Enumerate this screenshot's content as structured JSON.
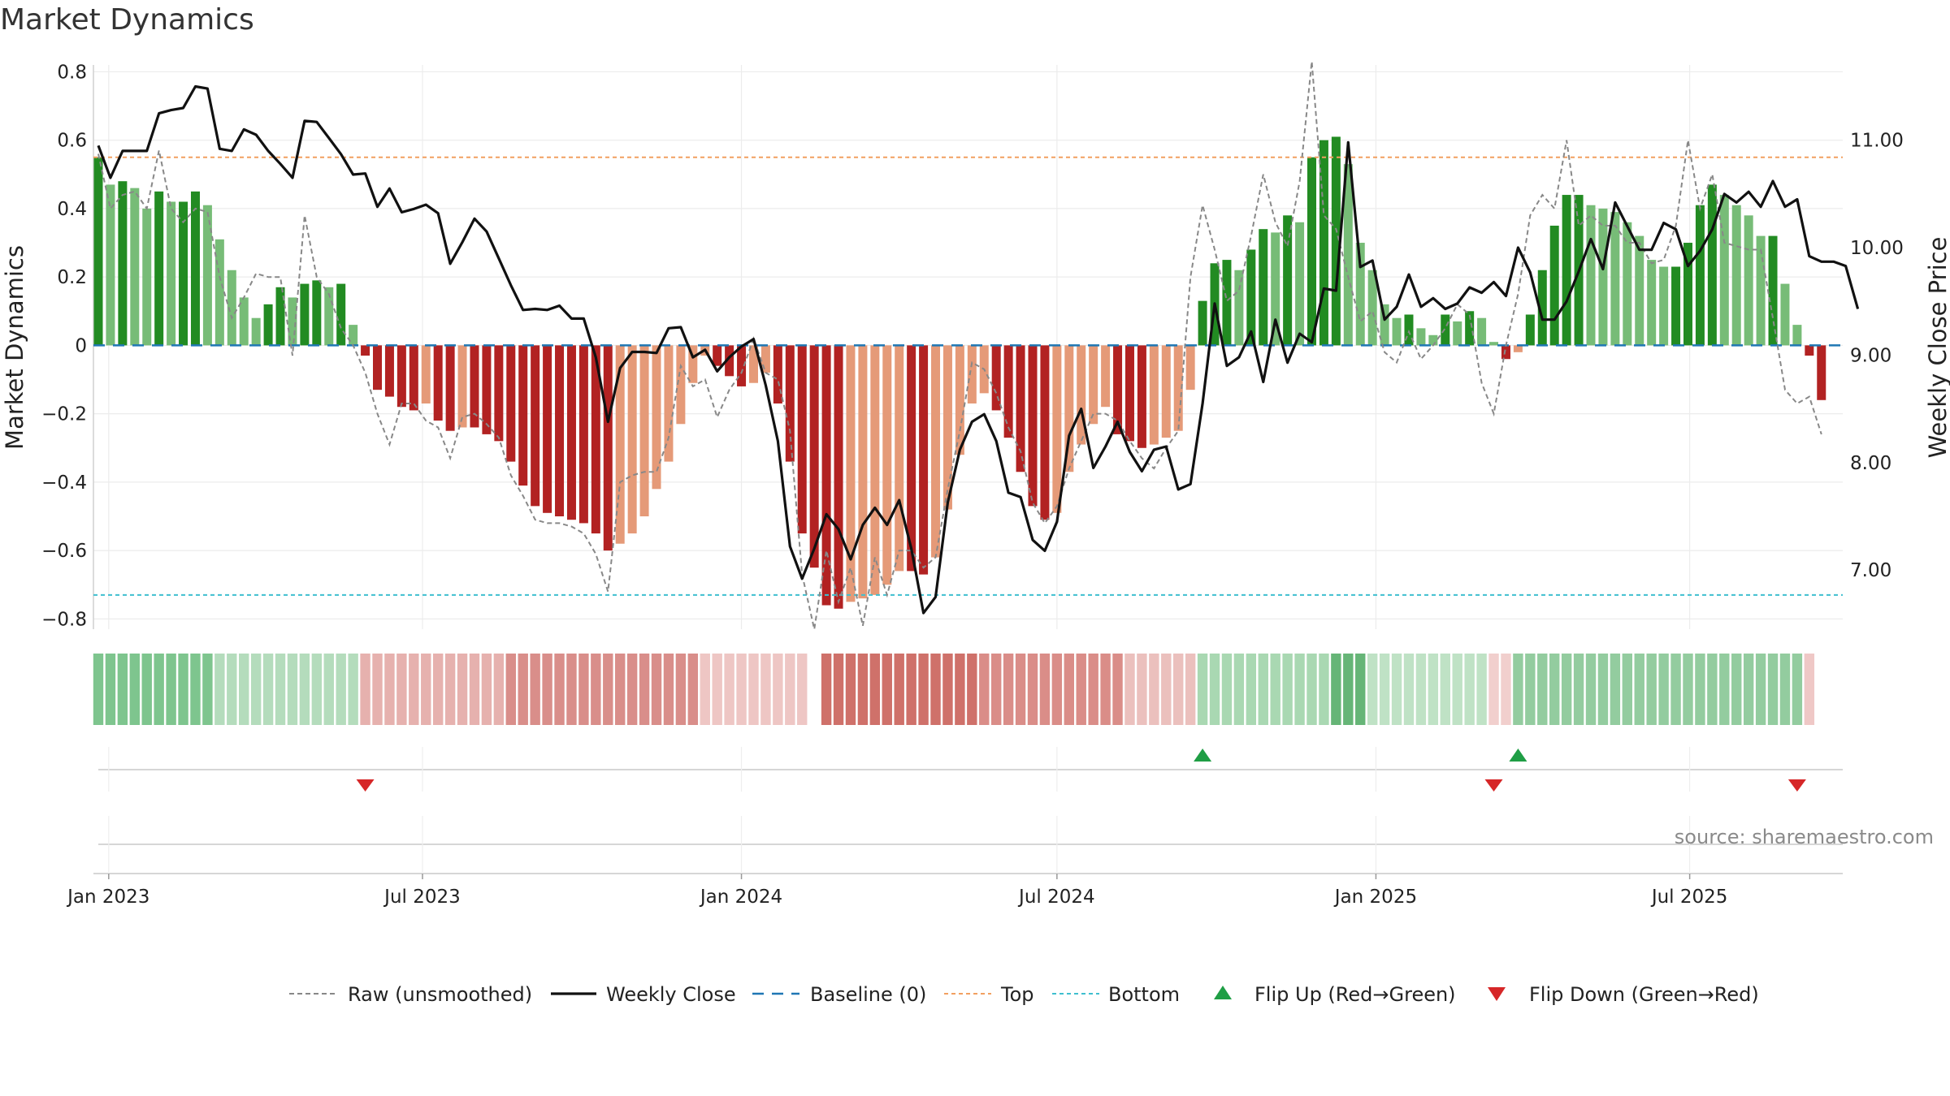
{
  "title": "Market Dynamics",
  "source": "source: sharemaestro.com",
  "colors": {
    "green_dark": "#228b22",
    "green_light": "#77bc77",
    "red_dark": "#b22222",
    "red_light": "#e59a78",
    "top": "#f2a060",
    "bottom": "#3fbfcf",
    "baseline": "#1f77b4",
    "raw": "#888888",
    "close": "#111111",
    "flip_up": "#1f9e45",
    "flip_down": "#d62728"
  },
  "chart_data": {
    "type": "bar",
    "x_start": "2022-12-26",
    "x_ticks": [
      {
        "date": "2023-01-01",
        "label": "Jan 2023"
      },
      {
        "date": "2023-07-01",
        "label": "Jul 2023"
      },
      {
        "date": "2024-01-01",
        "label": "Jan 2024"
      },
      {
        "date": "2024-07-01",
        "label": "Jul 2024"
      },
      {
        "date": "2025-01-01",
        "label": "Jan 2025"
      },
      {
        "date": "2025-07-01",
        "label": "Jul 2025"
      }
    ],
    "ylabel_left": "Market Dynamics",
    "ylabel_right": "Weekly Close Price",
    "ylim_left": [
      -0.83,
      0.82
    ],
    "ylim_right": [
      6.45,
      11.7
    ],
    "y_ticks_left": [
      {
        "v": 0.8,
        "label": "0.8"
      },
      {
        "v": 0.6,
        "label": "0.6"
      },
      {
        "v": 0.4,
        "label": "0.4"
      },
      {
        "v": 0.2,
        "label": "0.2"
      },
      {
        "v": 0,
        "label": "0"
      },
      {
        "v": -0.2,
        "label": "−0.2"
      },
      {
        "v": -0.4,
        "label": "−0.4"
      },
      {
        "v": -0.6,
        "label": "−0.6"
      },
      {
        "v": -0.8,
        "label": "−0.8"
      }
    ],
    "y_ticks_right": [
      {
        "v": 11,
        "label": "11.00"
      },
      {
        "v": 10,
        "label": "10.00"
      },
      {
        "v": 9,
        "label": "9.00"
      },
      {
        "v": 8,
        "label": "8.00"
      },
      {
        "v": 7,
        "label": "7.00"
      }
    ],
    "top": 0.55,
    "bottom": -0.73,
    "baseline": 0,
    "dynamics": [
      0.55,
      0.47,
      0.48,
      0.46,
      0.4,
      0.45,
      0.42,
      0.42,
      0.45,
      0.41,
      0.31,
      0.22,
      0.14,
      0.08,
      0.12,
      0.17,
      0.14,
      0.18,
      0.19,
      0.17,
      0.18,
      0.06,
      -0.03,
      -0.13,
      -0.15,
      -0.18,
      -0.19,
      -0.17,
      -0.22,
      -0.25,
      -0.24,
      -0.24,
      -0.26,
      -0.28,
      -0.34,
      -0.41,
      -0.47,
      -0.49,
      -0.5,
      -0.51,
      -0.52,
      -0.55,
      -0.6,
      -0.58,
      -0.55,
      -0.5,
      -0.42,
      -0.34,
      -0.23,
      -0.11,
      -0.03,
      -0.06,
      -0.09,
      -0.12,
      -0.11,
      -0.08,
      -0.17,
      -0.34,
      -0.55,
      -0.65,
      -0.76,
      -0.77,
      -0.75,
      -0.74,
      -0.73,
      -0.7,
      -0.66,
      -0.66,
      -0.67,
      -0.62,
      -0.48,
      -0.32,
      -0.17,
      -0.14,
      -0.19,
      -0.27,
      -0.37,
      -0.47,
      -0.51,
      -0.49,
      -0.37,
      -0.29,
      -0.23,
      -0.18,
      -0.26,
      -0.28,
      -0.3,
      -0.29,
      -0.27,
      -0.25,
      -0.13,
      0.13,
      0.24,
      0.25,
      0.22,
      0.28,
      0.34,
      0.33,
      0.38,
      0.36,
      0.55,
      0.6,
      0.61,
      0.53,
      0.3,
      0.22,
      0.12,
      0.08,
      0.09,
      0.05,
      0.03,
      0.09,
      0.07,
      0.1,
      0.08,
      0.01,
      -0.04,
      -0.02,
      0.09,
      0.22,
      0.35,
      0.44,
      0.44,
      0.41,
      0.4,
      0.39,
      0.36,
      0.32,
      0.25,
      0.23,
      0.23,
      0.3,
      0.41,
      0.47,
      0.44,
      0.41,
      0.38,
      0.32,
      0.32,
      0.18,
      0.06,
      -0.03,
      -0.16
    ],
    "raw": [
      0.56,
      0.4,
      0.44,
      0.45,
      0.4,
      0.57,
      0.4,
      0.36,
      0.4,
      0.39,
      0.2,
      0.08,
      0.14,
      0.21,
      0.2,
      0.2,
      -0.03,
      0.38,
      0.2,
      0.15,
      0.05,
      0.0,
      -0.08,
      -0.2,
      -0.29,
      -0.17,
      -0.17,
      -0.22,
      -0.24,
      -0.33,
      -0.21,
      -0.2,
      -0.23,
      -0.27,
      -0.38,
      -0.44,
      -0.51,
      -0.52,
      -0.52,
      -0.53,
      -0.55,
      -0.61,
      -0.72,
      -0.4,
      -0.38,
      -0.37,
      -0.37,
      -0.27,
      -0.06,
      -0.12,
      -0.1,
      -0.21,
      -0.13,
      -0.08,
      0.02,
      -0.08,
      -0.1,
      -0.25,
      -0.67,
      -0.83,
      -0.6,
      -0.75,
      -0.65,
      -0.82,
      -0.62,
      -0.73,
      -0.6,
      -0.6,
      -0.65,
      -0.62,
      -0.42,
      -0.25,
      -0.05,
      -0.07,
      -0.14,
      -0.24,
      -0.31,
      -0.46,
      -0.52,
      -0.47,
      -0.36,
      -0.28,
      -0.2,
      -0.2,
      -0.22,
      -0.28,
      -0.33,
      -0.36,
      -0.3,
      -0.25,
      0.2,
      0.41,
      0.28,
      0.13,
      0.16,
      0.32,
      0.5,
      0.36,
      0.29,
      0.48,
      0.83,
      0.38,
      0.34,
      0.2,
      0.07,
      0.1,
      -0.02,
      -0.05,
      0.04,
      -0.04,
      0.0,
      0.05,
      0.12,
      0.09,
      -0.11,
      -0.2,
      0.0,
      0.15,
      0.38,
      0.44,
      0.4,
      0.6,
      0.35,
      0.38,
      0.35,
      0.35,
      0.3,
      0.3,
      0.24,
      0.25,
      0.35,
      0.6,
      0.4,
      0.5,
      0.3,
      0.29,
      0.28,
      0.28,
      0.08,
      -0.13,
      -0.17,
      -0.15,
      -0.26
    ],
    "close": [
      10.95,
      10.65,
      10.9,
      10.9,
      10.9,
      11.25,
      11.28,
      11.3,
      11.5,
      11.48,
      10.92,
      10.9,
      11.1,
      11.05,
      10.9,
      10.78,
      10.65,
      11.18,
      11.17,
      11.02,
      10.87,
      10.68,
      10.69,
      10.38,
      10.55,
      10.33,
      10.36,
      10.4,
      10.32,
      9.85,
      10.05,
      10.27,
      10.15,
      9.9,
      9.65,
      9.42,
      9.43,
      9.42,
      9.46,
      9.34,
      9.34,
      8.98,
      8.38,
      8.88,
      9.03,
      9.03,
      9.02,
      9.25,
      9.26,
      8.98,
      9.05,
      8.85,
      8.98,
      9.08,
      9.15,
      8.72,
      8.2,
      7.22,
      6.92,
      7.2,
      7.52,
      7.38,
      7.1,
      7.42,
      7.58,
      7.42,
      7.65,
      7.2,
      6.6,
      6.75,
      7.63,
      8.12,
      8.38,
      8.45,
      8.2,
      7.72,
      7.68,
      7.28,
      7.18,
      7.45,
      8.25,
      8.5,
      7.95,
      8.15,
      8.38,
      8.1,
      7.92,
      8.12,
      8.15,
      7.75,
      7.8,
      8.55,
      9.48,
      8.9,
      8.98,
      9.22,
      8.75,
      9.33,
      8.93,
      9.2,
      9.12,
      9.62,
      9.6,
      10.98,
      9.82,
      9.88,
      9.33,
      9.45,
      9.75,
      9.45,
      9.53,
      9.43,
      9.48,
      9.63,
      9.58,
      9.68,
      9.55,
      10.0,
      9.77,
      9.33,
      9.33,
      9.5,
      9.78,
      10.08,
      9.8,
      10.42,
      10.2,
      9.98,
      9.98,
      10.23,
      10.17,
      9.83,
      9.97,
      10.17,
      10.5,
      10.42,
      10.52,
      10.38,
      10.62,
      10.38,
      10.45,
      9.92,
      9.87,
      9.87,
      9.83,
      9.43
    ],
    "strip_segments": [
      {
        "from": 0,
        "to": 9,
        "color": "#7ec58e"
      },
      {
        "from": 10,
        "to": 21,
        "color": "#b4dcbc"
      },
      {
        "from": 22,
        "to": 33,
        "color": "#e6b1ae"
      },
      {
        "from": 34,
        "to": 49,
        "color": "#d98e8a"
      },
      {
        "from": 50,
        "to": 58,
        "color": "#eec6c4"
      },
      {
        "from": 60,
        "to": 72,
        "color": "#cf716a"
      },
      {
        "from": 73,
        "to": 84,
        "color": "#da8d88"
      },
      {
        "from": 85,
        "to": 90,
        "color": "#ebc0bd"
      },
      {
        "from": 91,
        "to": 101,
        "color": "#a9d8b2"
      },
      {
        "from": 102,
        "to": 104,
        "color": "#66b577"
      },
      {
        "from": 105,
        "to": 114,
        "color": "#bfe2c5"
      },
      {
        "from": 115,
        "to": 116,
        "color": "#f1cfcd"
      },
      {
        "from": 117,
        "to": 140,
        "color": "#93cc9f"
      },
      {
        "from": 141,
        "to": 141,
        "color": "#efc8c6"
      }
    ],
    "flips": [
      {
        "i": 22,
        "dir": "down"
      },
      {
        "i": 91,
        "dir": "up"
      },
      {
        "i": 115,
        "dir": "down"
      },
      {
        "i": 117,
        "dir": "up"
      },
      {
        "i": 140,
        "dir": "down"
      }
    ],
    "legend": [
      {
        "key": "raw",
        "label": "Raw (unsmoothed)"
      },
      {
        "key": "close",
        "label": "Weekly Close"
      },
      {
        "key": "baseline",
        "label": "Baseline (0)"
      },
      {
        "key": "top",
        "label": "Top"
      },
      {
        "key": "bottom",
        "label": "Bottom"
      },
      {
        "key": "flip_up",
        "label": "Flip Up (Red→Green)"
      },
      {
        "key": "flip_down",
        "label": "Flip Down (Green→Red)"
      }
    ]
  }
}
